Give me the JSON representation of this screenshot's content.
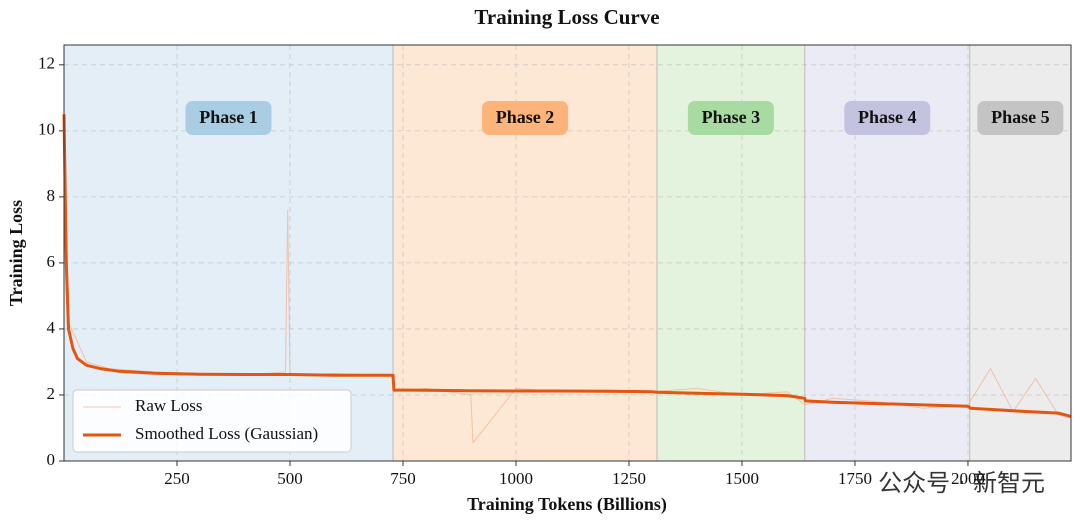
{
  "chart_data": {
    "type": "line",
    "title": "Training Loss Curve",
    "x_label": "Training Tokens (Billions)",
    "y_label": "Training Loss",
    "xlim": [
      0,
      2228
    ],
    "ylim": [
      0,
      12.6
    ],
    "xticks": [
      250,
      500,
      750,
      1000,
      1250,
      1500,
      1750,
      2000
    ],
    "yticks": [
      0,
      2,
      4,
      6,
      8,
      10,
      12
    ],
    "grid": true,
    "legend": "lower left",
    "phases": [
      {
        "name": "Phase 1",
        "start": 0,
        "end": 728,
        "color": "#e3eef7",
        "label_color": "#a9cde3"
      },
      {
        "name": "Phase 2",
        "start": 728,
        "end": 1312,
        "color": "#fde8d6",
        "label_color": "#fdb47b"
      },
      {
        "name": "Phase 3",
        "start": 1312,
        "end": 1639,
        "color": "#e3f3de",
        "label_color": "#a8dba1"
      },
      {
        "name": "Phase 4",
        "start": 1639,
        "end": 2004,
        "color": "#ebebf5",
        "label_color": "#c3c3e0"
      },
      {
        "name": "Phase 5",
        "start": 2004,
        "end": 2228,
        "color": "#ececec",
        "label_color": "#c4c4c4"
      }
    ],
    "series": [
      {
        "name": "Raw Loss",
        "color": "#f4a582",
        "width": 1,
        "x": [
          0,
          10,
          50,
          100,
          200,
          300,
          400,
          490,
          495,
          500,
          600,
          700,
          728,
          730,
          800,
          850,
          900,
          905,
          1000,
          1100,
          1200,
          1300,
          1400,
          1500,
          1600,
          1640,
          1700,
          1800,
          1900,
          2000,
          2050,
          2100,
          2150,
          2200,
          2228
        ],
        "values": [
          10.5,
          4.2,
          3.0,
          2.8,
          2.7,
          2.65,
          2.6,
          2.7,
          7.6,
          2.6,
          2.65,
          2.6,
          2.6,
          2.1,
          2.2,
          2.1,
          2.0,
          0.55,
          2.2,
          2.1,
          2.15,
          2.1,
          2.2,
          2.0,
          2.1,
          1.7,
          1.9,
          1.8,
          1.6,
          1.7,
          2.8,
          1.5,
          2.5,
          1.4,
          1.3
        ]
      },
      {
        "name": "Smoothed Loss (Gaussian)",
        "color": "#e6550d",
        "width": 3,
        "x": [
          0,
          5,
          10,
          20,
          30,
          50,
          80,
          120,
          200,
          300,
          400,
          500,
          600,
          700,
          728,
          730,
          800,
          900,
          1000,
          1100,
          1200,
          1300,
          1312,
          1400,
          1500,
          1600,
          1639,
          1640,
          1700,
          1800,
          1900,
          2000,
          2004,
          2005,
          2100,
          2200,
          2228
        ],
        "values": [
          10.5,
          6,
          4,
          3.4,
          3.1,
          2.9,
          2.8,
          2.72,
          2.66,
          2.63,
          2.62,
          2.62,
          2.6,
          2.6,
          2.6,
          2.15,
          2.14,
          2.13,
          2.12,
          2.12,
          2.11,
          2.1,
          2.08,
          2.05,
          2.02,
          1.98,
          1.9,
          1.82,
          1.78,
          1.74,
          1.7,
          1.66,
          1.62,
          1.6,
          1.52,
          1.45,
          1.35
        ]
      }
    ],
    "watermark": "公众号 · 新智元"
  }
}
